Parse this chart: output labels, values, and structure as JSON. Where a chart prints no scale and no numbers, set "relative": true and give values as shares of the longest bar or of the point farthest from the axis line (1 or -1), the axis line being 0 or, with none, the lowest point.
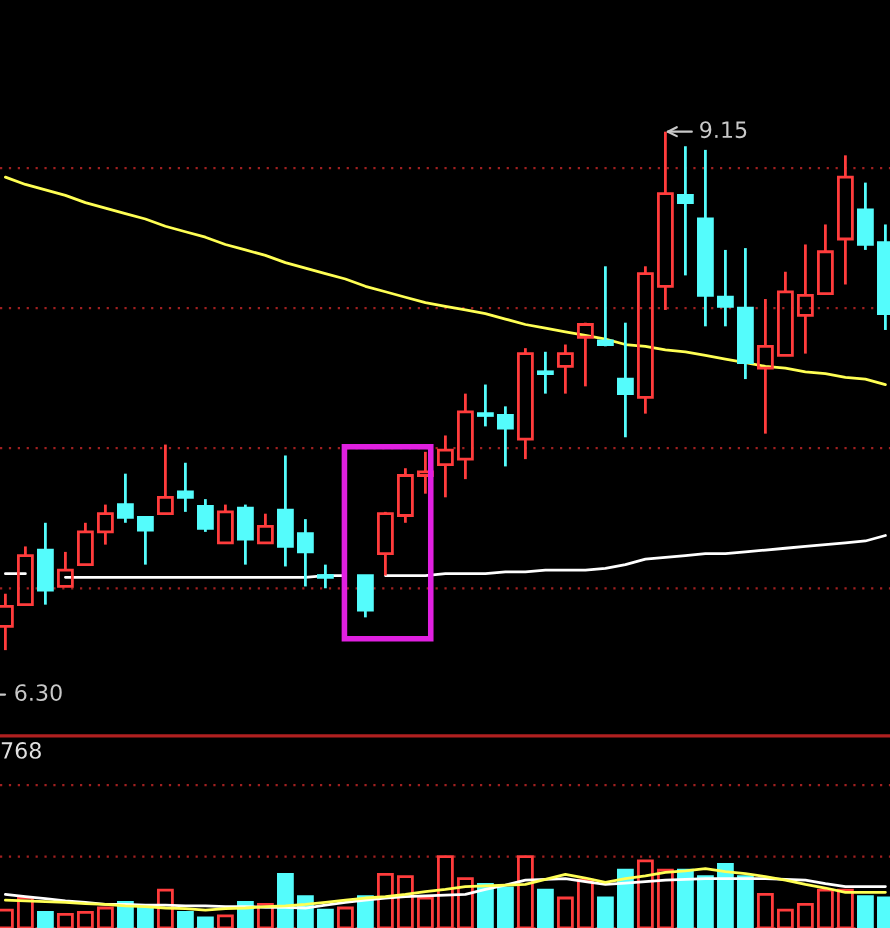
{
  "chart_data": [
    {
      "type": "candlestick",
      "categories": [
        null,
        null,
        null,
        null,
        null,
        null,
        null,
        null,
        null,
        null,
        null,
        null,
        null,
        null,
        null,
        null,
        null,
        null,
        null,
        null,
        null,
        null,
        null,
        null,
        null,
        null,
        null,
        null,
        null,
        null,
        null,
        null,
        null,
        null,
        null,
        null,
        null,
        null,
        null,
        null,
        null,
        null,
        null,
        null,
        null
      ],
      "ohlc": [
        [
          6.43,
          6.61,
          6.3,
          6.54
        ],
        [
          6.55,
          6.87,
          6.55,
          6.82
        ],
        [
          6.85,
          7.0,
          6.55,
          6.63
        ],
        [
          6.65,
          6.84,
          6.65,
          6.74
        ],
        [
          6.77,
          7.0,
          6.77,
          6.95
        ],
        [
          6.95,
          7.1,
          6.88,
          7.05
        ],
        [
          7.1,
          7.27,
          7.0,
          7.03
        ],
        [
          7.03,
          7.03,
          6.77,
          6.96
        ],
        [
          7.05,
          7.43,
          7.05,
          7.14
        ],
        [
          7.17,
          7.33,
          7.06,
          7.14
        ],
        [
          7.09,
          7.13,
          6.95,
          6.97
        ],
        [
          6.89,
          7.1,
          6.89,
          7.06
        ],
        [
          7.08,
          7.1,
          6.77,
          6.91
        ],
        [
          6.89,
          7.05,
          6.89,
          6.98
        ],
        [
          7.07,
          7.37,
          6.76,
          6.87
        ],
        [
          6.94,
          7.02,
          6.65,
          6.84
        ],
        [
          6.71,
          6.77,
          6.64,
          6.7
        ],
        null,
        [
          6.71,
          6.71,
          6.48,
          6.52
        ],
        [
          6.83,
          7.06,
          6.71,
          7.05
        ],
        [
          7.04,
          7.3,
          7.0,
          7.26
        ],
        [
          7.26,
          7.39,
          7.16,
          7.28
        ],
        [
          7.32,
          7.48,
          7.14,
          7.4
        ],
        [
          7.35,
          7.71,
          7.24,
          7.61
        ],
        [
          7.6,
          7.76,
          7.53,
          7.59
        ],
        [
          7.59,
          7.64,
          7.31,
          7.52
        ],
        [
          7.46,
          7.96,
          7.35,
          7.93
        ],
        [
          7.83,
          7.94,
          7.71,
          7.82
        ],
        [
          7.86,
          7.98,
          7.71,
          7.93
        ],
        [
          8.02,
          8.1,
          7.75,
          8.09
        ],
        [
          8.0,
          8.41,
          7.97,
          7.98
        ],
        [
          7.79,
          8.1,
          7.47,
          7.71
        ],
        [
          7.69,
          8.41,
          7.6,
          8.37
        ],
        [
          8.3,
          9.15,
          8.17,
          8.81
        ],
        [
          8.8,
          9.07,
          8.36,
          8.76
        ],
        [
          8.67,
          9.05,
          8.08,
          8.25
        ],
        [
          8.24,
          8.5,
          8.08,
          8.19
        ],
        [
          8.18,
          8.51,
          7.79,
          7.88
        ],
        [
          7.85,
          8.23,
          7.49,
          7.97
        ],
        [
          7.92,
          8.38,
          7.92,
          8.27
        ],
        [
          8.14,
          8.53,
          7.93,
          8.25
        ],
        [
          8.26,
          8.64,
          8.26,
          8.49
        ],
        [
          8.56,
          9.02,
          8.31,
          8.9
        ],
        [
          8.72,
          8.87,
          8.5,
          8.53
        ],
        [
          8.54,
          8.64,
          8.06,
          8.15
        ]
      ],
      "colors": [
        "#ff3c3c",
        "#ff3c3c",
        "#54fcfc",
        "#ff3c3c",
        "#ff3c3c",
        "#ff3c3c",
        "#54fcfc",
        "#54fcfc",
        "#ff3c3c",
        "#54fcfc",
        "#54fcfc",
        "#ff3c3c",
        "#54fcfc",
        "#ff3c3c",
        "#54fcfc",
        "#54fcfc",
        "#54fcfc",
        null,
        "#54fcfc",
        "#ff3c3c",
        "#ff3c3c",
        "#ff3c3c",
        "#ff3c3c",
        "#ff3c3c",
        "#54fcfc",
        "#54fcfc",
        "#ff3c3c",
        "#54fcfc",
        "#ff3c3c",
        "#ff3c3c",
        "#54fcfc",
        "#54fcfc",
        "#ff3c3c",
        "#ff3c3c",
        "#54fcfc",
        "#54fcfc",
        "#54fcfc",
        "#54fcfc",
        "#ff3c3c",
        "#ff3c3c",
        "#ff3c3c",
        "#ff3c3c",
        "#ff3c3c",
        "#54fcfc",
        "#54fcfc"
      ],
      "series": [
        {
          "type": "line",
          "color": "#ffff54",
          "values": [
            8.9,
            8.86,
            8.83,
            8.8,
            8.76,
            8.73,
            8.7,
            8.67,
            8.63,
            8.6,
            8.57,
            8.53,
            8.5,
            8.47,
            8.43,
            8.4,
            8.37,
            8.34,
            8.3,
            8.27,
            8.24,
            8.21,
            8.19,
            8.17,
            8.15,
            8.12,
            8.09,
            8.07,
            8.05,
            8.03,
            8.01,
            7.98,
            7.97,
            7.95,
            7.94,
            7.92,
            7.9,
            7.88,
            7.86,
            7.85,
            7.83,
            7.82,
            7.8,
            7.79,
            7.76
          ]
        },
        {
          "type": "line",
          "color": "#ffffff",
          "values": [
            6.72,
            6.72,
            null,
            6.7,
            6.7,
            6.7,
            6.7,
            6.7,
            6.7,
            6.7,
            6.7,
            6.7,
            6.7,
            6.7,
            6.7,
            6.7,
            6.71,
            6.71,
            null,
            6.71,
            6.71,
            6.71,
            6.72,
            6.72,
            6.72,
            6.73,
            6.73,
            6.74,
            6.74,
            6.74,
            6.75,
            6.77,
            6.8,
            6.81,
            6.82,
            6.83,
            6.83,
            6.84,
            6.85,
            6.86,
            6.87,
            6.88,
            6.89,
            6.9,
            6.93
          ]
        }
      ],
      "yticks": [
        {
          "value": 6.64,
          "label": null
        },
        {
          "value": 7.41,
          "label": null
        },
        {
          "value": 8.18,
          "label": null
        },
        {
          "value": 8.95,
          "label": null
        }
      ],
      "grid": "y",
      "annotations": [
        "9.15",
        "6.30"
      ]
    },
    {
      "type": "bar",
      "relative": true,
      "categories": [
        null,
        null,
        null,
        null,
        null,
        null,
        null,
        null,
        null,
        null,
        null,
        null,
        null,
        null,
        null,
        null,
        null,
        null,
        null,
        null,
        null,
        null,
        null,
        null,
        null,
        null,
        null,
        null,
        null,
        null,
        null,
        null,
        null,
        null,
        null,
        null,
        null,
        null,
        null,
        null,
        null,
        null,
        null,
        null,
        null
      ],
      "series": [
        {
          "type": "bar",
          "colors": [
            "#ff3c3c",
            "#ff3c3c",
            "#54fcfc",
            "#ff3c3c",
            "#ff3c3c",
            "#ff3c3c",
            "#54fcfc",
            "#54fcfc",
            "#ff3c3c",
            "#54fcfc",
            "#54fcfc",
            "#ff3c3c",
            "#54fcfc",
            "#ff3c3c",
            "#54fcfc",
            "#54fcfc",
            "#54fcfc",
            "#ff3c3c",
            "#54fcfc",
            "#ff3c3c",
            "#ff3c3c",
            "#ff3c3c",
            "#ff3c3c",
            "#ff3c3c",
            "#54fcfc",
            "#54fcfc",
            "#ff3c3c",
            "#54fcfc",
            "#ff3c3c",
            "#ff3c3c",
            "#54fcfc",
            "#54fcfc",
            "#ff3c3c",
            "#ff3c3c",
            "#54fcfc",
            "#54fcfc",
            "#54fcfc",
            "#54fcfc",
            "#ff3c3c",
            "#ff3c3c",
            "#ff3c3c",
            "#ff3c3c",
            "#ff3c3c",
            "#54fcfc",
            "#54fcfc"
          ],
          "values": [
            0.25,
            0.42,
            0.22,
            0.19,
            0.22,
            0.28,
            0.36,
            0.28,
            0.53,
            0.22,
            0.14,
            0.17,
            0.36,
            0.33,
            0.75,
            0.44,
            0.25,
            0.28,
            0.44,
            0.75,
            0.72,
            0.42,
            1,
            0.69,
            0.61,
            0.56,
            1,
            0.53,
            0.42,
            0.67,
            0.42,
            0.81,
            0.94,
            0.81,
            0.81,
            0.72,
            0.89,
            0.72,
            0.47,
            0.25,
            0.33,
            0.53,
            0.53,
            0.44,
            0.42
          ]
        },
        {
          "type": "line",
          "color": "#ffffff",
          "values": [
            0.47,
            0.44,
            0.41,
            0.38,
            0.36,
            0.33,
            0.33,
            0.32,
            0.32,
            0.31,
            0.31,
            0.3,
            0.3,
            0.29,
            0.29,
            0.28,
            0.32,
            0.36,
            0.39,
            0.42,
            0.44,
            0.45,
            0.46,
            0.47,
            0.54,
            0.6,
            0.67,
            0.68,
            0.69,
            0.65,
            0.61,
            0.63,
            0.65,
            0.67,
            0.68,
            0.69,
            0.69,
            0.69,
            0.69,
            0.68,
            0.67,
            0.62,
            0.58,
            0.58,
            0.58
          ]
        },
        {
          "type": "line",
          "color": "#ffff54",
          "values": [
            0.39,
            0.38,
            0.37,
            0.36,
            0.34,
            0.33,
            0.31,
            0.3,
            0.28,
            0.27,
            0.25,
            0.27,
            0.28,
            0.3,
            0.31,
            0.33,
            0.36,
            0.39,
            0.42,
            0.44,
            0.47,
            0.51,
            0.54,
            0.58,
            0.59,
            0.6,
            0.61,
            0.68,
            0.75,
            0.7,
            0.64,
            0.69,
            0.73,
            0.78,
            0.8,
            0.83,
            0.79,
            0.76,
            0.72,
            0.67,
            0.61,
            0.56,
            0.5,
            0.5,
            0.5
          ]
        }
      ],
      "grid": "y",
      "annotations": [
        "768"
      ]
    }
  ]
}
